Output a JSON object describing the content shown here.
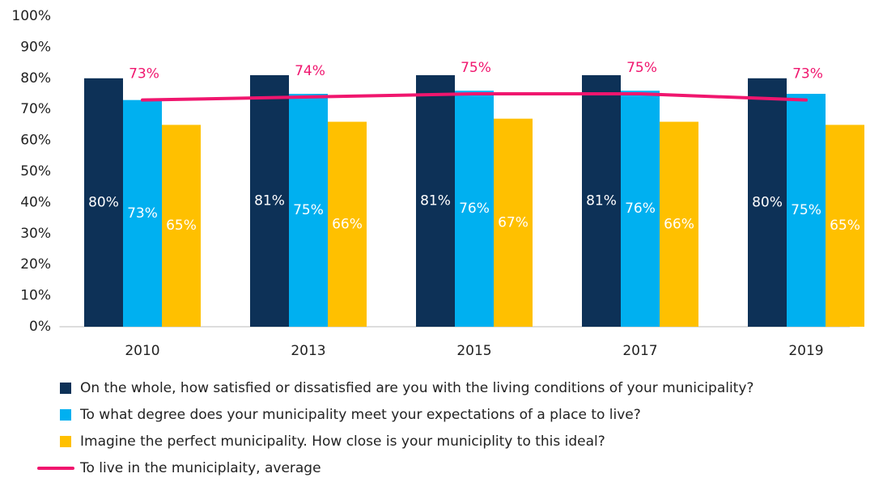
{
  "chart_data": {
    "type": "bar",
    "categories": [
      "2010",
      "2013",
      "2015",
      "2017",
      "2019"
    ],
    "series": [
      {
        "name": "On the whole, how satisfied or dissatisfied are you with the living conditions of your municipality?",
        "type": "bar",
        "color": "#0d3157",
        "values": [
          80,
          81,
          81,
          81,
          80
        ],
        "value_labels": [
          "80%",
          "81%",
          "81%",
          "81%",
          "80%"
        ]
      },
      {
        "name": "To what degree does your municipality meet your expectations of a place to live?",
        "type": "bar",
        "color": "#00b0f0",
        "values": [
          73,
          75,
          76,
          76,
          75
        ],
        "value_labels": [
          "73%",
          "75%",
          "76%",
          "76%",
          "75%"
        ]
      },
      {
        "name": "Imagine the perfect municipality. How close is your municiplity to this ideal?",
        "type": "bar",
        "color": "#ffc000",
        "values": [
          65,
          66,
          67,
          66,
          65
        ],
        "value_labels": [
          "65%",
          "66%",
          "67%",
          "66%",
          "65%"
        ]
      },
      {
        "name": "To live in the municiplaity, average",
        "type": "line",
        "color": "#f0166e",
        "values": [
          73,
          74,
          75,
          75,
          73
        ],
        "value_labels": [
          "73%",
          "74%",
          "75%",
          "75%",
          "73%"
        ]
      }
    ],
    "ylim": [
      0,
      100
    ],
    "yticks": [
      {
        "value": 0,
        "label": "0%"
      },
      {
        "value": 10,
        "label": "10%"
      },
      {
        "value": 20,
        "label": "20%"
      },
      {
        "value": 30,
        "label": "30%"
      },
      {
        "value": 40,
        "label": "40%"
      },
      {
        "value": 50,
        "label": "50%"
      },
      {
        "value": 60,
        "label": "60%"
      },
      {
        "value": 70,
        "label": "70%"
      },
      {
        "value": 80,
        "label": "80%"
      },
      {
        "value": 90,
        "label": "90%"
      },
      {
        "value": 100,
        "label": "100%"
      }
    ],
    "grid": false
  }
}
